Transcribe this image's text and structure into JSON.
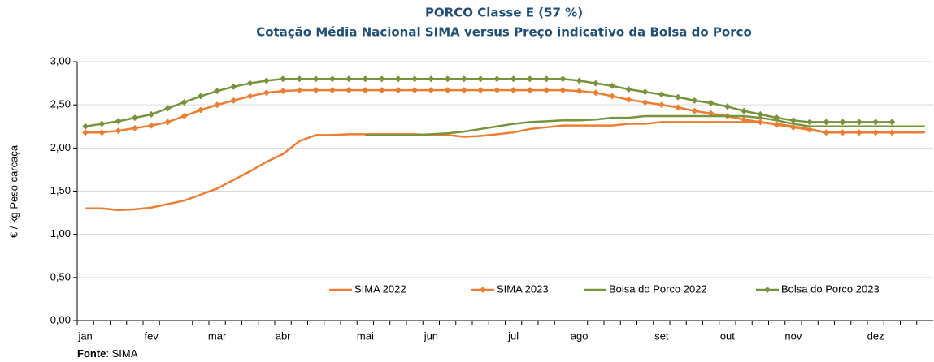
{
  "chart_data": {
    "type": "line",
    "title": "PORCO Classe E (57 %)",
    "subtitle": "Cotação Média Nacional SIMA versus Preço indicativo da Bolsa do Porco",
    "y_label": "€ / kg Peso carcaça",
    "source": {
      "label": "Fonte",
      "text": ": SIMA"
    },
    "categories": [
      "jan",
      null,
      null,
      null,
      "fev",
      null,
      null,
      null,
      "mar",
      null,
      null,
      null,
      "abr",
      null,
      null,
      null,
      null,
      "mai",
      null,
      null,
      null,
      "jun",
      null,
      null,
      null,
      null,
      "jul",
      null,
      null,
      null,
      "ago",
      null,
      null,
      null,
      null,
      "set",
      null,
      null,
      null,
      "out",
      null,
      null,
      null,
      "nov",
      null,
      null,
      null,
      null,
      "dez",
      null,
      null,
      null
    ],
    "ylim": [
      0,
      3
    ],
    "yticks": [
      {
        "value": 0,
        "label": "0,00"
      },
      {
        "value": 0.5,
        "label": "0,50"
      },
      {
        "value": 1,
        "label": "1,00"
      },
      {
        "value": 1.5,
        "label": "1,50"
      },
      {
        "value": 2,
        "label": "2,00"
      },
      {
        "value": 2.5,
        "label": "2,50"
      },
      {
        "value": 3,
        "label": "3,00"
      }
    ],
    "grid": true,
    "legend": "bottom",
    "series": [
      {
        "name": "SIMA 2022",
        "color": "#ed7d31",
        "markers": false,
        "values": [
          1.3,
          1.3,
          1.28,
          1.29,
          1.31,
          1.35,
          1.39,
          1.46,
          1.53,
          1.63,
          1.73,
          1.84,
          1.93,
          2.08,
          2.15,
          2.15,
          2.16,
          2.16,
          2.16,
          2.16,
          2.16,
          2.15,
          2.15,
          2.13,
          2.14,
          2.16,
          2.18,
          2.22,
          2.24,
          2.26,
          2.26,
          2.26,
          2.26,
          2.28,
          2.28,
          2.3,
          2.3,
          2.3,
          2.3,
          2.3,
          2.3,
          2.3,
          2.28,
          2.25,
          2.22,
          2.18,
          2.18,
          2.18,
          2.18,
          2.18,
          2.18,
          2.18
        ]
      },
      {
        "name": "SIMA 2023",
        "color": "#ed7d31",
        "markers": true,
        "values": [
          2.18,
          2.18,
          2.2,
          2.23,
          2.26,
          2.3,
          2.37,
          2.44,
          2.5,
          2.55,
          2.6,
          2.64,
          2.66,
          2.67,
          2.67,
          2.67,
          2.67,
          2.67,
          2.67,
          2.67,
          2.67,
          2.67,
          2.67,
          2.67,
          2.67,
          2.67,
          2.67,
          2.67,
          2.67,
          2.67,
          2.66,
          2.64,
          2.6,
          2.56,
          2.53,
          2.5,
          2.47,
          2.43,
          2.4,
          2.37,
          2.33,
          2.3,
          2.27,
          2.24,
          2.21,
          2.18,
          2.18,
          2.18,
          2.18,
          2.18,
          null,
          null
        ]
      },
      {
        "name": "Bolsa do Porco 2022",
        "color": "#77933c",
        "markers": false,
        "values": [
          null,
          null,
          null,
          null,
          null,
          null,
          null,
          null,
          null,
          null,
          null,
          null,
          null,
          null,
          null,
          null,
          null,
          2.15,
          2.15,
          2.15,
          2.15,
          2.16,
          2.17,
          2.19,
          2.22,
          2.25,
          2.28,
          2.3,
          2.31,
          2.32,
          2.32,
          2.33,
          2.35,
          2.35,
          2.37,
          2.37,
          2.37,
          2.37,
          2.37,
          2.37,
          2.37,
          2.35,
          2.32,
          2.28,
          2.25,
          2.25,
          2.25,
          2.25,
          2.25,
          2.25,
          2.25,
          2.25
        ]
      },
      {
        "name": "Bolsa do Porco 2023",
        "color": "#77933c",
        "markers": true,
        "values": [
          2.25,
          2.28,
          2.31,
          2.35,
          2.39,
          2.46,
          2.53,
          2.6,
          2.66,
          2.71,
          2.75,
          2.78,
          2.8,
          2.8,
          2.8,
          2.8,
          2.8,
          2.8,
          2.8,
          2.8,
          2.8,
          2.8,
          2.8,
          2.8,
          2.8,
          2.8,
          2.8,
          2.8,
          2.8,
          2.8,
          2.78,
          2.75,
          2.72,
          2.68,
          2.65,
          2.62,
          2.59,
          2.55,
          2.52,
          2.48,
          2.43,
          2.39,
          2.35,
          2.32,
          2.3,
          2.3,
          2.3,
          2.3,
          2.3,
          2.3,
          null,
          null
        ]
      }
    ]
  }
}
